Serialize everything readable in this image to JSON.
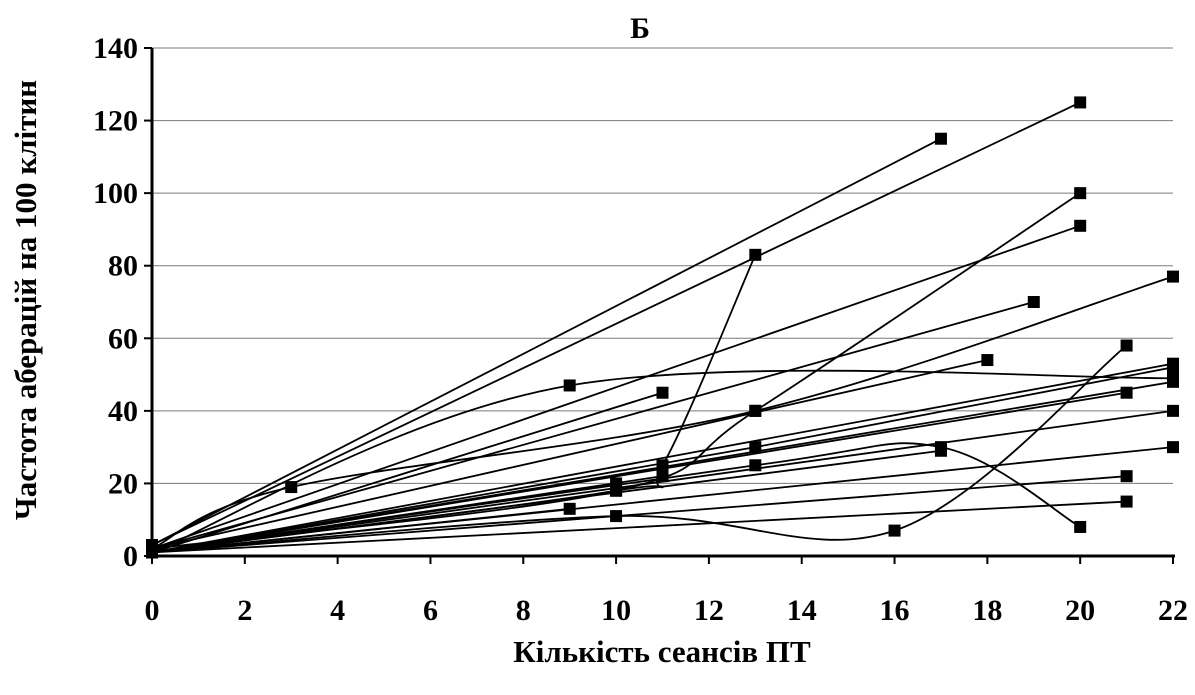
{
  "chart_data": {
    "type": "scatter",
    "title": "Б",
    "xlabel": "Кількість сеансів ПТ",
    "ylabel": "Частота аберацій на 100 клітин",
    "xlim": [
      0,
      22
    ],
    "ylim": [
      0,
      140
    ],
    "x_ticks": [
      "0",
      "2",
      "4",
      "6",
      "8",
      "10",
      "12",
      "14",
      "16",
      "18",
      "20",
      "22"
    ],
    "y_ticks": [
      "0",
      "20",
      "40",
      "60",
      "80",
      "100",
      "120",
      "140"
    ],
    "grid": "horizontal",
    "legend": "none",
    "series": [
      {
        "x": [
          0,
          17
        ],
        "y": [
          3,
          115
        ],
        "curve": "linear"
      },
      {
        "x": [
          0,
          20
        ],
        "y": [
          3,
          125
        ],
        "curve": "linear"
      },
      {
        "x": [
          0,
          10,
          13,
          20
        ],
        "y": [
          2,
          18,
          40,
          100
        ],
        "curve": "smooth"
      },
      {
        "x": [
          0,
          20
        ],
        "y": [
          2,
          91
        ],
        "curve": "linear"
      },
      {
        "x": [
          0,
          3,
          13,
          22
        ],
        "y": [
          2,
          19,
          40,
          77
        ],
        "curve": "smooth"
      },
      {
        "x": [
          0,
          19
        ],
        "y": [
          2,
          70
        ],
        "curve": "linear"
      },
      {
        "x": [
          0,
          18
        ],
        "y": [
          2,
          54
        ],
        "curve": "linear"
      },
      {
        "x": [
          0,
          9,
          22
        ],
        "y": [
          1,
          47,
          49
        ],
        "curve": "smooth"
      },
      {
        "x": [
          0,
          11
        ],
        "y": [
          1,
          45
        ],
        "curve": "linear"
      },
      {
        "x": [
          0,
          10,
          11,
          13
        ],
        "y": [
          1,
          18,
          25,
          83
        ],
        "curve": "smooth"
      },
      {
        "x": [
          0,
          22
        ],
        "y": [
          1,
          53
        ],
        "curve": "linear"
      },
      {
        "x": [
          0,
          13,
          22
        ],
        "y": [
          1,
          30,
          52
        ],
        "curve": "linear"
      },
      {
        "x": [
          0,
          22
        ],
        "y": [
          1,
          48
        ],
        "curve": "linear"
      },
      {
        "x": [
          0,
          21
        ],
        "y": [
          1,
          45
        ],
        "curve": "linear"
      },
      {
        "x": [
          0,
          22
        ],
        "y": [
          1,
          40
        ],
        "curve": "linear"
      },
      {
        "x": [
          0,
          10,
          16,
          21
        ],
        "y": [
          1,
          11,
          7,
          58
        ],
        "curve": "smooth"
      },
      {
        "x": [
          0,
          13,
          17,
          20
        ],
        "y": [
          1,
          25,
          30,
          8
        ],
        "curve": "smooth"
      },
      {
        "x": [
          0,
          22
        ],
        "y": [
          1,
          30
        ],
        "curve": "linear"
      },
      {
        "x": [
          0,
          21
        ],
        "y": [
          1,
          22
        ],
        "curve": "linear"
      },
      {
        "x": [
          0,
          21
        ],
        "y": [
          1,
          15
        ],
        "curve": "linear"
      },
      {
        "x": [
          0,
          9
        ],
        "y": [
          1,
          13
        ],
        "curve": "linear"
      },
      {
        "x": [
          0,
          10
        ],
        "y": [
          1,
          20
        ],
        "curve": "linear"
      },
      {
        "x": [
          0,
          11
        ],
        "y": [
          1,
          22
        ],
        "curve": "linear"
      },
      {
        "x": [
          0,
          17
        ],
        "y": [
          1,
          29
        ],
        "curve": "linear"
      }
    ]
  }
}
